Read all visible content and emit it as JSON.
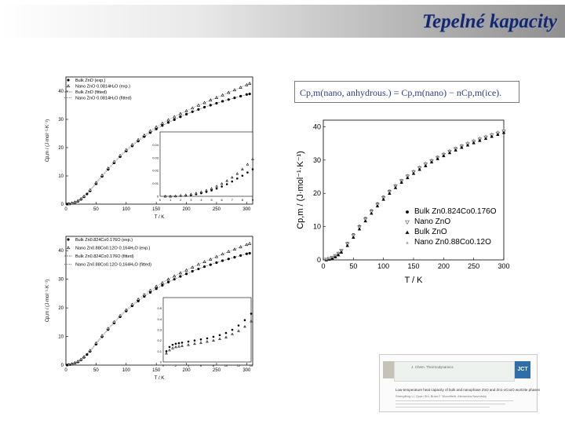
{
  "slide": {
    "title": "Tepelné kapacity"
  },
  "formula": "Cp,m(nano, anhydrous.) = Cp,m(nano) − nCp,m(ice).",
  "paper": {
    "journal": "J. Chem. Thermodynamics",
    "logo": "JCT",
    "title": "Low-temperature heat capacity of bulk and nanophase ZnO and Zn1-xCoxO wurtzite phases",
    "authors": "Shengfeng Li, Quan Shi, Brian F. Woodfield, Alexandra Navrotsky"
  },
  "chart_data": [
    {
      "id": "top-left",
      "type": "scatter",
      "xlabel": "T / K",
      "ylabel": "Cp,m / (J·mol⁻¹·K⁻¹)",
      "xlim": [
        0,
        310
      ],
      "ylim": [
        0,
        45
      ],
      "xticks": [
        0,
        50,
        100,
        150,
        200,
        250,
        300
      ],
      "yticks": [
        0,
        10,
        20,
        30,
        40
      ],
      "legend": [
        "Bulk ZnO (exp.)",
        "Nano ZnO·0.0814H₂O (exp.)",
        "Bulk ZnO (fitted)",
        "Nano ZnO·0.0814H₂O (fitted)"
      ],
      "series": [
        {
          "name": "Bulk ZnO (exp.)",
          "marker": "filled-circle",
          "x": [
            2,
            5,
            10,
            15,
            20,
            25,
            30,
            35,
            40,
            50,
            60,
            70,
            80,
            90,
            100,
            110,
            120,
            130,
            140,
            150,
            160,
            170,
            180,
            190,
            200,
            210,
            220,
            230,
            240,
            250,
            260,
            270,
            280,
            290,
            300,
            305
          ],
          "y": [
            0,
            0.1,
            0.3,
            0.6,
            1.0,
            1.7,
            2.6,
            3.6,
            4.7,
            7.2,
            9.8,
            12.3,
            14.6,
            16.8,
            18.8,
            20.6,
            22.3,
            23.9,
            25.3,
            26.6,
            27.8,
            28.9,
            29.9,
            30.9,
            31.8,
            32.7,
            33.5,
            34.3,
            35.0,
            35.7,
            36.4,
            37.0,
            37.6,
            38.2,
            38.8,
            39.0
          ]
        },
        {
          "name": "Nano ZnO·0.0814H₂O (exp.)",
          "marker": "open-triangle",
          "x": [
            5,
            10,
            15,
            20,
            25,
            30,
            40,
            50,
            60,
            70,
            80,
            90,
            100,
            110,
            120,
            130,
            140,
            150,
            160,
            170,
            180,
            190,
            200,
            210,
            220,
            230,
            240,
            250,
            260,
            270,
            280,
            290,
            300,
            305
          ],
          "y": [
            0.1,
            0.35,
            0.7,
            1.2,
            1.9,
            2.8,
            5.0,
            7.6,
            10.2,
            12.7,
            15.0,
            17.2,
            19.2,
            21.0,
            22.8,
            24.4,
            25.9,
            27.3,
            28.6,
            29.8,
            30.9,
            32.0,
            33.0,
            34.0,
            35.0,
            35.9,
            36.8,
            37.7,
            38.6,
            39.5,
            40.4,
            41.3,
            42.2,
            42.7
          ]
        }
      ],
      "inset": {
        "xlim": [
          0,
          9
        ],
        "ylim": [
          0,
          0.05
        ],
        "xticks": [
          0,
          1,
          2,
          3,
          4,
          5,
          6,
          7,
          8,
          9
        ],
        "yticks": [
          0,
          0.01,
          0.02,
          0.03,
          0.04
        ],
        "series": [
          {
            "name": "Bulk ZnO (exp.)",
            "x": [
              0.5,
              1,
              1.5,
              2,
              2.5,
              3,
              3.5,
              4,
              4.5,
              5,
              5.5,
              6,
              6.5,
              7,
              7.5,
              8,
              8.5,
              9
            ],
            "y": [
              0,
              0,
              0,
              0.0003,
              0.0006,
              0.001,
              0.0016,
              0.0024,
              0.0034,
              0.0046,
              0.006,
              0.0076,
              0.0094,
              0.0115,
              0.0138,
              0.016,
              0.0185,
              0.021
            ]
          },
          {
            "name": "Nano ZnO·0.0814H₂O (exp.)",
            "x": [
              0.5,
              1,
              1.5,
              2,
              2.5,
              3,
              3.5,
              4,
              4.5,
              5,
              5.5,
              6,
              6.5,
              7,
              7.5,
              8,
              8.5,
              9
            ],
            "y": [
              0,
              0,
              0.0002,
              0.0006,
              0.001,
              0.0016,
              0.0024,
              0.0034,
              0.0046,
              0.006,
              0.0078,
              0.0098,
              0.0121,
              0.0147,
              0.0176,
              0.021,
              0.0248,
              0.029
            ]
          }
        ]
      }
    },
    {
      "id": "bottom-left",
      "type": "scatter",
      "xlabel": "T / K",
      "ylabel": "Cp,m / (J·mol⁻¹·K⁻¹)",
      "xlim": [
        0,
        310
      ],
      "ylim": [
        0,
        45
      ],
      "xticks": [
        0,
        50,
        100,
        150,
        200,
        250,
        300
      ],
      "yticks": [
        0,
        10,
        20,
        30,
        40
      ],
      "legend": [
        "Bulk Zn0.824Co0.176O (exp.)",
        "Nano Zn0.88Co0.12O·0.164H₂O (exp.)",
        "Bulk Zn0.824Co0.176O (fitted)",
        "Nano Zn0.88Co0.12O·0.164H₂O (fitted)"
      ],
      "series": [
        {
          "name": "Bulk Zn0.824Co0.176O (exp.)",
          "marker": "filled-circle",
          "x": [
            2,
            5,
            10,
            15,
            20,
            25,
            30,
            35,
            40,
            50,
            60,
            70,
            80,
            90,
            100,
            110,
            120,
            130,
            140,
            150,
            160,
            170,
            180,
            190,
            200,
            210,
            220,
            230,
            240,
            250,
            260,
            270,
            280,
            290,
            300,
            305
          ],
          "y": [
            0,
            0.15,
            0.35,
            0.7,
            1.1,
            1.8,
            2.7,
            3.7,
            4.8,
            7.3,
            9.9,
            12.4,
            14.7,
            16.9,
            18.9,
            20.7,
            22.4,
            24.0,
            25.4,
            26.7,
            27.9,
            29.0,
            30.0,
            31.0,
            31.9,
            32.8,
            33.6,
            34.4,
            35.1,
            35.8,
            36.5,
            37.1,
            37.7,
            38.3,
            38.9,
            39.1
          ]
        },
        {
          "name": "Nano Zn0.88Co0.12O·0.164H₂O (exp.)",
          "marker": "open-triangle",
          "x": [
            5,
            10,
            15,
            20,
            25,
            30,
            40,
            50,
            60,
            70,
            80,
            90,
            100,
            110,
            120,
            130,
            140,
            150,
            160,
            170,
            180,
            190,
            200,
            210,
            220,
            230,
            240,
            250,
            260,
            270,
            280,
            290,
            300,
            305
          ],
          "y": [
            0.15,
            0.4,
            0.8,
            1.3,
            2.0,
            2.9,
            5.1,
            7.7,
            10.3,
            12.8,
            15.1,
            17.3,
            19.3,
            21.2,
            23.0,
            24.6,
            26.1,
            27.5,
            28.8,
            30.0,
            31.1,
            32.2,
            33.2,
            34.2,
            35.2,
            36.1,
            37.0,
            37.9,
            38.8,
            39.7,
            40.5,
            41.3,
            42.1,
            42.5
          ]
        }
      ],
      "inset": {
        "xlim": [
          0,
          14
        ],
        "ylim": [
          0,
          0.6
        ],
        "xticks": [
          0,
          2,
          4,
          6,
          8,
          10,
          12,
          14
        ],
        "yticks": [
          0,
          0.1,
          0.2,
          0.3,
          0.4,
          0.5
        ],
        "series": [
          {
            "name": "Bulk Zn0.824Co0.176O (exp.)",
            "x": [
              0.5,
              1,
              1.5,
              2,
              2.5,
              3,
              4,
              5,
              6,
              7,
              8,
              9,
              10,
              11,
              12,
              13,
              14
            ],
            "y": [
              0.1,
              0.14,
              0.16,
              0.17,
              0.175,
              0.18,
              0.19,
              0.2,
              0.21,
              0.22,
              0.235,
              0.25,
              0.27,
              0.3,
              0.34,
              0.39,
              0.45
            ]
          },
          {
            "name": "Nano Zn0.88Co0.12O·0.164H₂O (exp.)",
            "x": [
              0.5,
              1,
              1.5,
              2,
              2.5,
              3,
              4,
              5,
              6,
              7,
              8,
              9,
              10,
              11,
              12,
              13,
              14
            ],
            "y": [
              0.08,
              0.11,
              0.13,
              0.14,
              0.145,
              0.15,
              0.16,
              0.17,
              0.18,
              0.19,
              0.2,
              0.215,
              0.23,
              0.26,
              0.29,
              0.33,
              0.38
            ]
          }
        ]
      }
    },
    {
      "id": "right",
      "type": "scatter",
      "xlabel": "T / K",
      "ylabel": "Cp,m / (J·mol⁻¹·K⁻¹)",
      "xlim": [
        0,
        300
      ],
      "ylim": [
        0,
        42
      ],
      "xticks": [
        0,
        50,
        100,
        150,
        200,
        250,
        300
      ],
      "yticks": [
        0,
        10,
        20,
        30,
        40
      ],
      "legend": [
        "Bulk Zn0.824Co0.176O",
        "Nano ZnO",
        "Bulk ZnO",
        "Nano Zn0.88Co0.12O"
      ],
      "series": [
        {
          "name": "Bulk Zn0.824Co0.176O",
          "marker": "dot",
          "x": [
            5,
            10,
            15,
            20,
            25,
            30,
            40,
            50,
            60,
            70,
            80,
            90,
            100,
            110,
            120,
            130,
            140,
            150,
            160,
            170,
            180,
            190,
            200,
            210,
            220,
            230,
            240,
            250,
            260,
            270,
            280,
            290,
            300
          ],
          "y": [
            0.1,
            0.4,
            0.8,
            1.3,
            2.0,
            2.9,
            5.0,
            7.6,
            10.1,
            12.5,
            14.8,
            16.9,
            18.9,
            20.7,
            22.3,
            23.9,
            25.3,
            26.6,
            27.8,
            28.9,
            29.9,
            30.9,
            31.8,
            32.7,
            33.5,
            34.3,
            35.0,
            35.7,
            36.4,
            37.0,
            37.6,
            38.2,
            38.8
          ]
        },
        {
          "name": "Nano ZnO",
          "marker": "open-down-triangle",
          "x": [
            5,
            10,
            15,
            20,
            25,
            30,
            40,
            50,
            60,
            70,
            80,
            90,
            100,
            110,
            120,
            130,
            140,
            150,
            160,
            170,
            180,
            190,
            200,
            210,
            220,
            230,
            240,
            250,
            260,
            270,
            280,
            290,
            300
          ],
          "y": [
            0.1,
            0.35,
            0.7,
            1.2,
            1.9,
            2.8,
            4.8,
            7.3,
            9.8,
            12.2,
            14.5,
            16.6,
            18.6,
            20.4,
            22.1,
            23.7,
            25.1,
            26.4,
            27.6,
            28.7,
            29.7,
            30.7,
            31.6,
            32.5,
            33.3,
            34.1,
            34.8,
            35.5,
            36.2,
            36.8,
            37.4,
            38.0,
            38.6
          ]
        },
        {
          "name": "Bulk ZnO",
          "marker": "filled-triangle",
          "x": [
            5,
            10,
            15,
            20,
            25,
            30,
            40,
            50,
            60,
            70,
            80,
            90,
            100,
            110,
            120,
            130,
            140,
            150,
            160,
            170,
            180,
            190,
            200,
            210,
            220,
            230,
            240,
            250,
            260,
            270,
            280,
            290,
            300
          ],
          "y": [
            0,
            0.2,
            0.5,
            0.9,
            1.5,
            2.3,
            4.3,
            6.8,
            9.3,
            11.7,
            14.0,
            16.2,
            18.2,
            20.0,
            21.7,
            23.3,
            24.7,
            26.0,
            27.2,
            28.3,
            29.4,
            30.4,
            31.3,
            32.2,
            33.0,
            33.8,
            34.5,
            35.2,
            35.9,
            36.5,
            37.1,
            37.7,
            38.3
          ]
        },
        {
          "name": "Nano Zn0.88Co0.12O",
          "marker": "small-triangle",
          "x": [
            5,
            10,
            15,
            20,
            25,
            30,
            40,
            50,
            60,
            70,
            80,
            90,
            100,
            110,
            120,
            130,
            140,
            150,
            160,
            170,
            180,
            190,
            200,
            210,
            220,
            230,
            240,
            250,
            260,
            270,
            280,
            290,
            300
          ],
          "y": [
            0.2,
            0.5,
            0.9,
            1.4,
            2.1,
            3.0,
            5.1,
            7.7,
            10.2,
            12.6,
            14.9,
            17.0,
            19.0,
            20.8,
            22.5,
            24.1,
            25.6,
            26.9,
            28.1,
            29.2,
            30.2,
            31.2,
            32.1,
            33.0,
            33.8,
            34.6,
            35.4,
            36.1,
            36.8,
            37.4,
            38.0,
            38.6,
            39.2
          ]
        }
      ]
    }
  ]
}
